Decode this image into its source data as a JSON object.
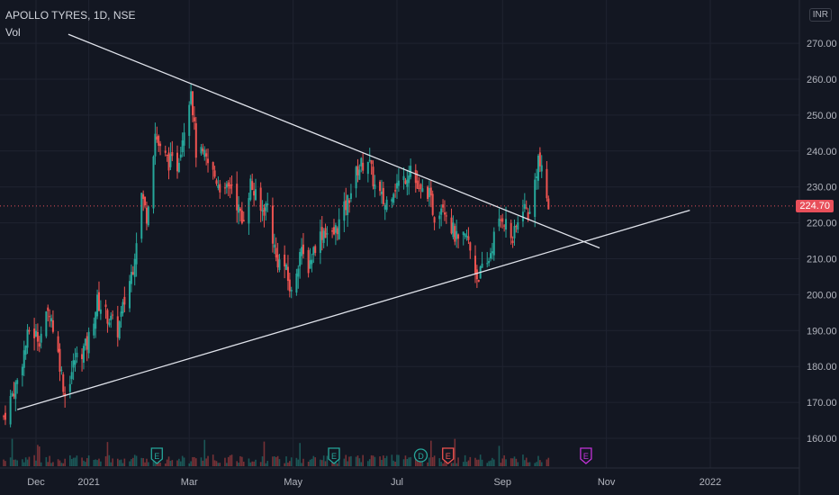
{
  "header": {
    "symbol_line": "APOLLO TYRES, 1D, NSE",
    "volume_label": "Vol"
  },
  "currency_button": "INR",
  "last_price_tag": "224.70",
  "colors": {
    "background": "#131722",
    "up": "#26a69a",
    "down": "#ef5350",
    "trendline": "#e0e3eb",
    "last_price_line": "#e84f5a"
  },
  "chart_data": {
    "type": "candlestick",
    "symbol": "APOLLO TYRES",
    "interval": "1D",
    "exchange": "NSE",
    "ylim": [
      152,
      282
    ],
    "y_ticks": [
      "160.00",
      "170.00",
      "180.00",
      "190.00",
      "200.00",
      "210.00",
      "220.00",
      "230.00",
      "240.00",
      "250.00",
      "260.00",
      "270.00"
    ],
    "x_ticks": [
      "Dec",
      "2021",
      "Mar",
      "May",
      "Jul",
      "Sep",
      "Nov",
      "2022"
    ],
    "last_price": 224.7,
    "price_path": [
      [
        "2020-11-12",
        166
      ],
      [
        "2020-11-20",
        176
      ],
      [
        "2020-11-27",
        190
      ],
      [
        "2020-12-03",
        188
      ],
      [
        "2020-12-09",
        196
      ],
      [
        "2020-12-15",
        181
      ],
      [
        "2020-12-18",
        172
      ],
      [
        "2020-12-24",
        182
      ],
      [
        "2020-12-31",
        186
      ],
      [
        "2021-01-06",
        198
      ],
      [
        "2021-01-12",
        194
      ],
      [
        "2021-01-18",
        190
      ],
      [
        "2021-01-22",
        198
      ],
      [
        "2021-01-27",
        208
      ],
      [
        "2021-02-01",
        228
      ],
      [
        "2021-02-04",
        222
      ],
      [
        "2021-02-09",
        245
      ],
      [
        "2021-02-12",
        240
      ],
      [
        "2021-02-17",
        237
      ],
      [
        "2021-02-22",
        236
      ],
      [
        "2021-02-26",
        247
      ],
      [
        "2021-03-02",
        258
      ],
      [
        "2021-03-05",
        240
      ],
      [
        "2021-03-10",
        238
      ],
      [
        "2021-03-16",
        233
      ],
      [
        "2021-03-22",
        228
      ],
      [
        "2021-03-26",
        231
      ],
      [
        "2021-04-01",
        220
      ],
      [
        "2021-04-06",
        231
      ],
      [
        "2021-04-12",
        223
      ],
      [
        "2021-04-16",
        225
      ],
      [
        "2021-04-21",
        210
      ],
      [
        "2021-04-26",
        208
      ],
      [
        "2021-04-30",
        200
      ],
      [
        "2021-05-05",
        212
      ],
      [
        "2021-05-10",
        208
      ],
      [
        "2021-05-14",
        214
      ],
      [
        "2021-05-19",
        218
      ],
      [
        "2021-05-24",
        216
      ],
      [
        "2021-05-28",
        220
      ],
      [
        "2021-06-02",
        226
      ],
      [
        "2021-06-08",
        235
      ],
      [
        "2021-06-14",
        238
      ],
      [
        "2021-06-18",
        230
      ],
      [
        "2021-06-24",
        225
      ],
      [
        "2021-06-29",
        230
      ],
      [
        "2021-07-05",
        232
      ],
      [
        "2021-07-09",
        236
      ],
      [
        "2021-07-14",
        228
      ],
      [
        "2021-07-19",
        229
      ],
      [
        "2021-07-23",
        222
      ],
      [
        "2021-07-28",
        226
      ],
      [
        "2021-08-02",
        219
      ],
      [
        "2021-08-06",
        214
      ],
      [
        "2021-08-11",
        216
      ],
      [
        "2021-08-17",
        205
      ],
      [
        "2021-08-23",
        208
      ],
      [
        "2021-08-27",
        216
      ],
      [
        "2021-09-01",
        222
      ],
      [
        "2021-09-07",
        215
      ],
      [
        "2021-09-13",
        225
      ],
      [
        "2021-09-17",
        222
      ],
      [
        "2021-09-22",
        238
      ],
      [
        "2021-09-28",
        224.7
      ]
    ],
    "volume_markers": [
      {
        "label": "E",
        "date": "2021-02-10"
      },
      {
        "label": "E",
        "date": "2021-05-25"
      },
      {
        "label": "D",
        "date": "2021-07-15"
      },
      {
        "label": "E",
        "date": "2021-07-31"
      },
      {
        "label": "E",
        "date": "2021-10-20"
      }
    ],
    "trendlines": [
      {
        "from": [
          "2020-12-20",
          272.5
        ],
        "to": [
          "2021-10-28",
          213
        ]
      },
      {
        "from": [
          "2020-11-20",
          168
        ],
        "to": [
          "2021-12-20",
          223.5
        ]
      }
    ]
  }
}
